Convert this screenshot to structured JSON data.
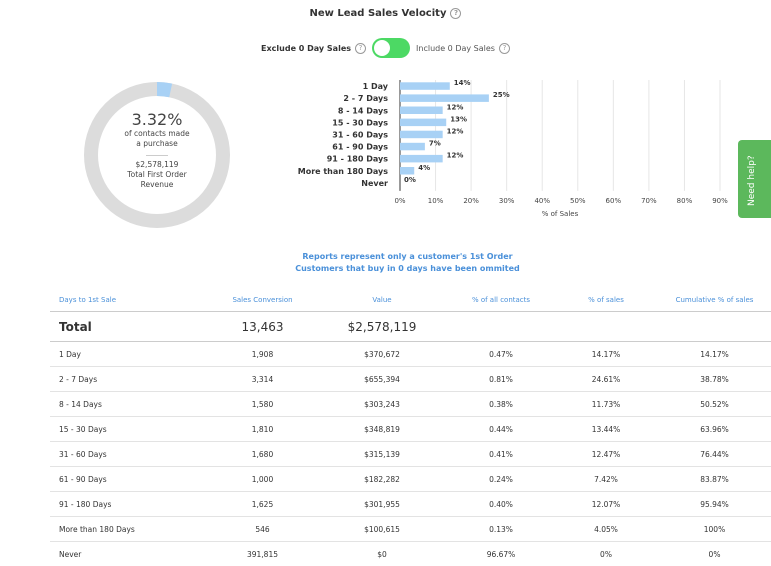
{
  "header": {
    "title": "New Lead Sales Velocity",
    "help_glyph": "?"
  },
  "toggle": {
    "left_label": "Exclude 0 Day Sales",
    "right_label": "Include 0 Day Sales",
    "state": "on",
    "on_color": "#4cd964"
  },
  "summary": {
    "percent": "3.32%",
    "percent_value": 3.32,
    "line1": "of contacts made",
    "line2": "a purchase",
    "revenue": "$2,578,119",
    "revenue_line1": "Total First Order",
    "revenue_line2": "Revenue",
    "ring_color": "#dcdcdc",
    "fill_color": "#a8d1f5"
  },
  "chart_data": {
    "type": "bar",
    "orientation": "horizontal",
    "categories": [
      "1 Day",
      "2 - 7 Days",
      "8 - 14 Days",
      "15 - 30 Days",
      "31 - 60 Days",
      "61 - 90 Days",
      "91 - 180 Days",
      "More than 180 Days",
      "Never"
    ],
    "values": [
      14,
      25,
      12,
      13,
      12,
      7,
      12,
      4,
      0
    ],
    "value_labels": [
      "14%",
      "25%",
      "12%",
      "13%",
      "12%",
      "7%",
      "12%",
      "4%",
      "0%"
    ],
    "xlabel": "% of Sales",
    "ylabel": "",
    "xlim": [
      0,
      90
    ],
    "xticks": [
      "0%",
      "10%",
      "20%",
      "30%",
      "40%",
      "50%",
      "60%",
      "70%",
      "80%",
      "90%"
    ],
    "bar_color": "#a8d1f5",
    "grid": true
  },
  "help_tab": {
    "label": "Need help?",
    "color": "#5cb85c"
  },
  "note": {
    "line1": "Reports represent only a customer's 1st Order",
    "line2": "Customers that buy in 0 days have been ommited"
  },
  "table": {
    "headers": [
      "Days to 1st Sale",
      "Sales Conversion",
      "Value",
      "% of all contacts",
      "% of sales",
      "Cumulative % of sales"
    ],
    "total": [
      "Total",
      "13,463",
      "$2,578,119",
      "",
      "",
      ""
    ],
    "rows": [
      [
        "1 Day",
        "1,908",
        "$370,672",
        "0.47%",
        "14.17%",
        "14.17%"
      ],
      [
        "2 - 7 Days",
        "3,314",
        "$655,394",
        "0.81%",
        "24.61%",
        "38.78%"
      ],
      [
        "8 - 14 Days",
        "1,580",
        "$303,243",
        "0.38%",
        "11.73%",
        "50.52%"
      ],
      [
        "15 - 30 Days",
        "1,810",
        "$348,819",
        "0.44%",
        "13.44%",
        "63.96%"
      ],
      [
        "31 - 60 Days",
        "1,680",
        "$315,139",
        "0.41%",
        "12.47%",
        "76.44%"
      ],
      [
        "61 - 90 Days",
        "1,000",
        "$182,282",
        "0.24%",
        "7.42%",
        "83.87%"
      ],
      [
        "91 - 180 Days",
        "1,625",
        "$301,955",
        "0.40%",
        "12.07%",
        "95.94%"
      ],
      [
        "More than 180 Days",
        "546",
        "$100,615",
        "0.13%",
        "4.05%",
        "100%"
      ],
      [
        "Never",
        "391,815",
        "$0",
        "96.67%",
        "0%",
        "0%"
      ]
    ]
  }
}
